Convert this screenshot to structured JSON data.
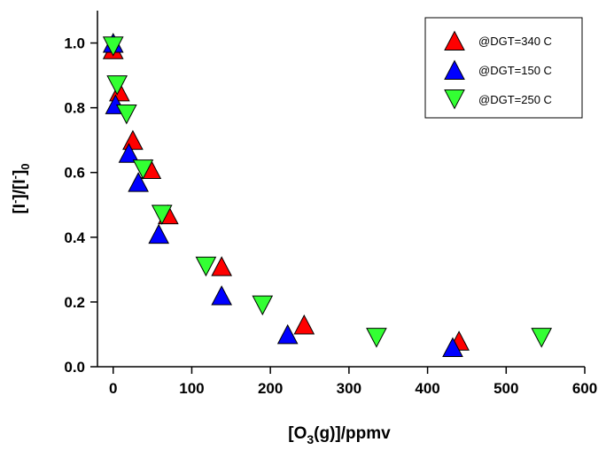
{
  "chart_data": {
    "type": "scatter",
    "xlabel_main": "[O",
    "xlabel_sub": "3",
    "xlabel_rest": "(g)]/ppmv",
    "ylabel_main": "[I",
    "ylabel_sup1": "-",
    "ylabel_mid": "]/[I",
    "ylabel_sup2": "-",
    "ylabel_end": "]",
    "ylabel_sub": "0",
    "xlim": [
      -20,
      600
    ],
    "ylim": [
      0,
      1.1
    ],
    "x_ticks": [
      0,
      100,
      200,
      300,
      400,
      500,
      600
    ],
    "y_ticks": [
      0.0,
      0.2,
      0.4,
      0.6,
      0.8,
      1.0
    ],
    "x_tick_labels": [
      "0",
      "100",
      "200",
      "300",
      "400",
      "500",
      "600"
    ],
    "y_tick_labels": [
      "0.0",
      "0.2",
      "0.4",
      "0.6",
      "0.8",
      "1.0"
    ],
    "grid": false,
    "legend_position": "top-right",
    "series": [
      {
        "name": "@DGT=340 C",
        "marker": "triangle-up",
        "color": "#ff0000",
        "points": [
          [
            0,
            0.98
          ],
          [
            8,
            0.85
          ],
          [
            25,
            0.7
          ],
          [
            48,
            0.61
          ],
          [
            70,
            0.47
          ],
          [
            138,
            0.31
          ],
          [
            243,
            0.13
          ],
          [
            440,
            0.08
          ]
        ]
      },
      {
        "name": "@DGT=150 C",
        "marker": "triangle-up",
        "color": "#0000ff",
        "points": [
          [
            0,
            1.0
          ],
          [
            3,
            0.81
          ],
          [
            20,
            0.66
          ],
          [
            32,
            0.57
          ],
          [
            58,
            0.41
          ],
          [
            138,
            0.22
          ],
          [
            222,
            0.1
          ],
          [
            432,
            0.06
          ]
        ]
      },
      {
        "name": "@DGT=250 C",
        "marker": "triangle-down",
        "color": "#33ff33",
        "points": [
          [
            0,
            0.99
          ],
          [
            5,
            0.87
          ],
          [
            17,
            0.78
          ],
          [
            38,
            0.61
          ],
          [
            62,
            0.47
          ],
          [
            118,
            0.31
          ],
          [
            190,
            0.19
          ],
          [
            335,
            0.09
          ],
          [
            545,
            0.09
          ]
        ]
      }
    ]
  }
}
